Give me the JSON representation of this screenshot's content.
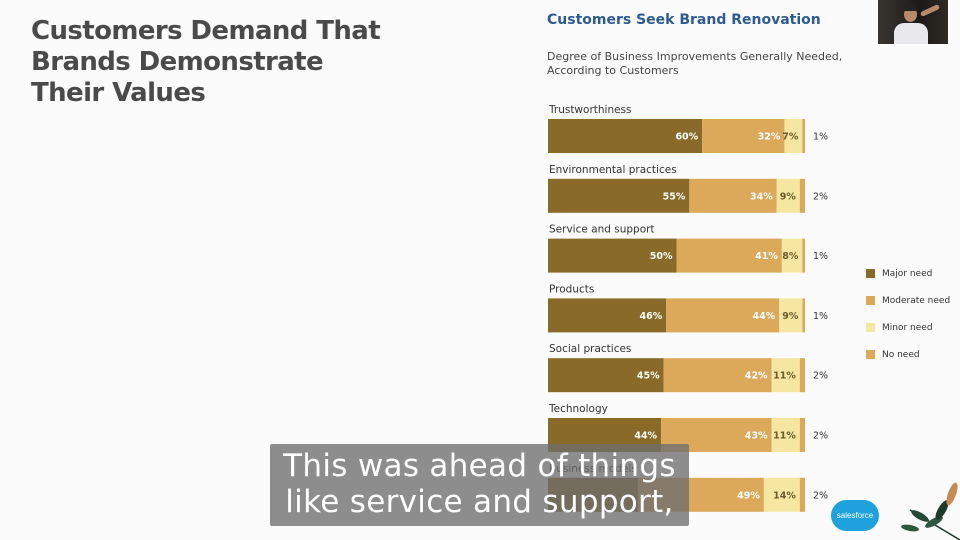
{
  "slide": {
    "title": "Customers Demand That\nBrands Demonstrate\nTheir Values"
  },
  "chart_data": {
    "type": "bar",
    "stacked": true,
    "orientation": "horizontal",
    "title": "Customers Seek Brand Renovation",
    "subtitle": "Degree of Business Improvements Generally Needed, According to Customers",
    "categories": [
      "Trustworthiness",
      "Environmental practices",
      "Service and support",
      "Products",
      "Social practices",
      "Technology",
      "Business models"
    ],
    "series": [
      {
        "name": "Major need",
        "color": "#8a6a28",
        "values": [
          60,
          55,
          50,
          46,
          45,
          44,
          null
        ]
      },
      {
        "name": "Moderate need",
        "color": "#dca85a",
        "values": [
          32,
          34,
          41,
          44,
          42,
          43,
          49
        ]
      },
      {
        "name": "Minor need",
        "color": "#f5e6a2",
        "values": [
          7,
          9,
          8,
          9,
          11,
          11,
          14
        ]
      },
      {
        "name": "No need",
        "color": "#dca85a",
        "values": [
          1,
          2,
          1,
          1,
          2,
          2,
          2
        ]
      }
    ],
    "legend_position": "right"
  },
  "video_caption": {
    "line1": "This was ahead of things",
    "line2": "like service and support,"
  },
  "brand_logo": {
    "text": "salesforce"
  }
}
